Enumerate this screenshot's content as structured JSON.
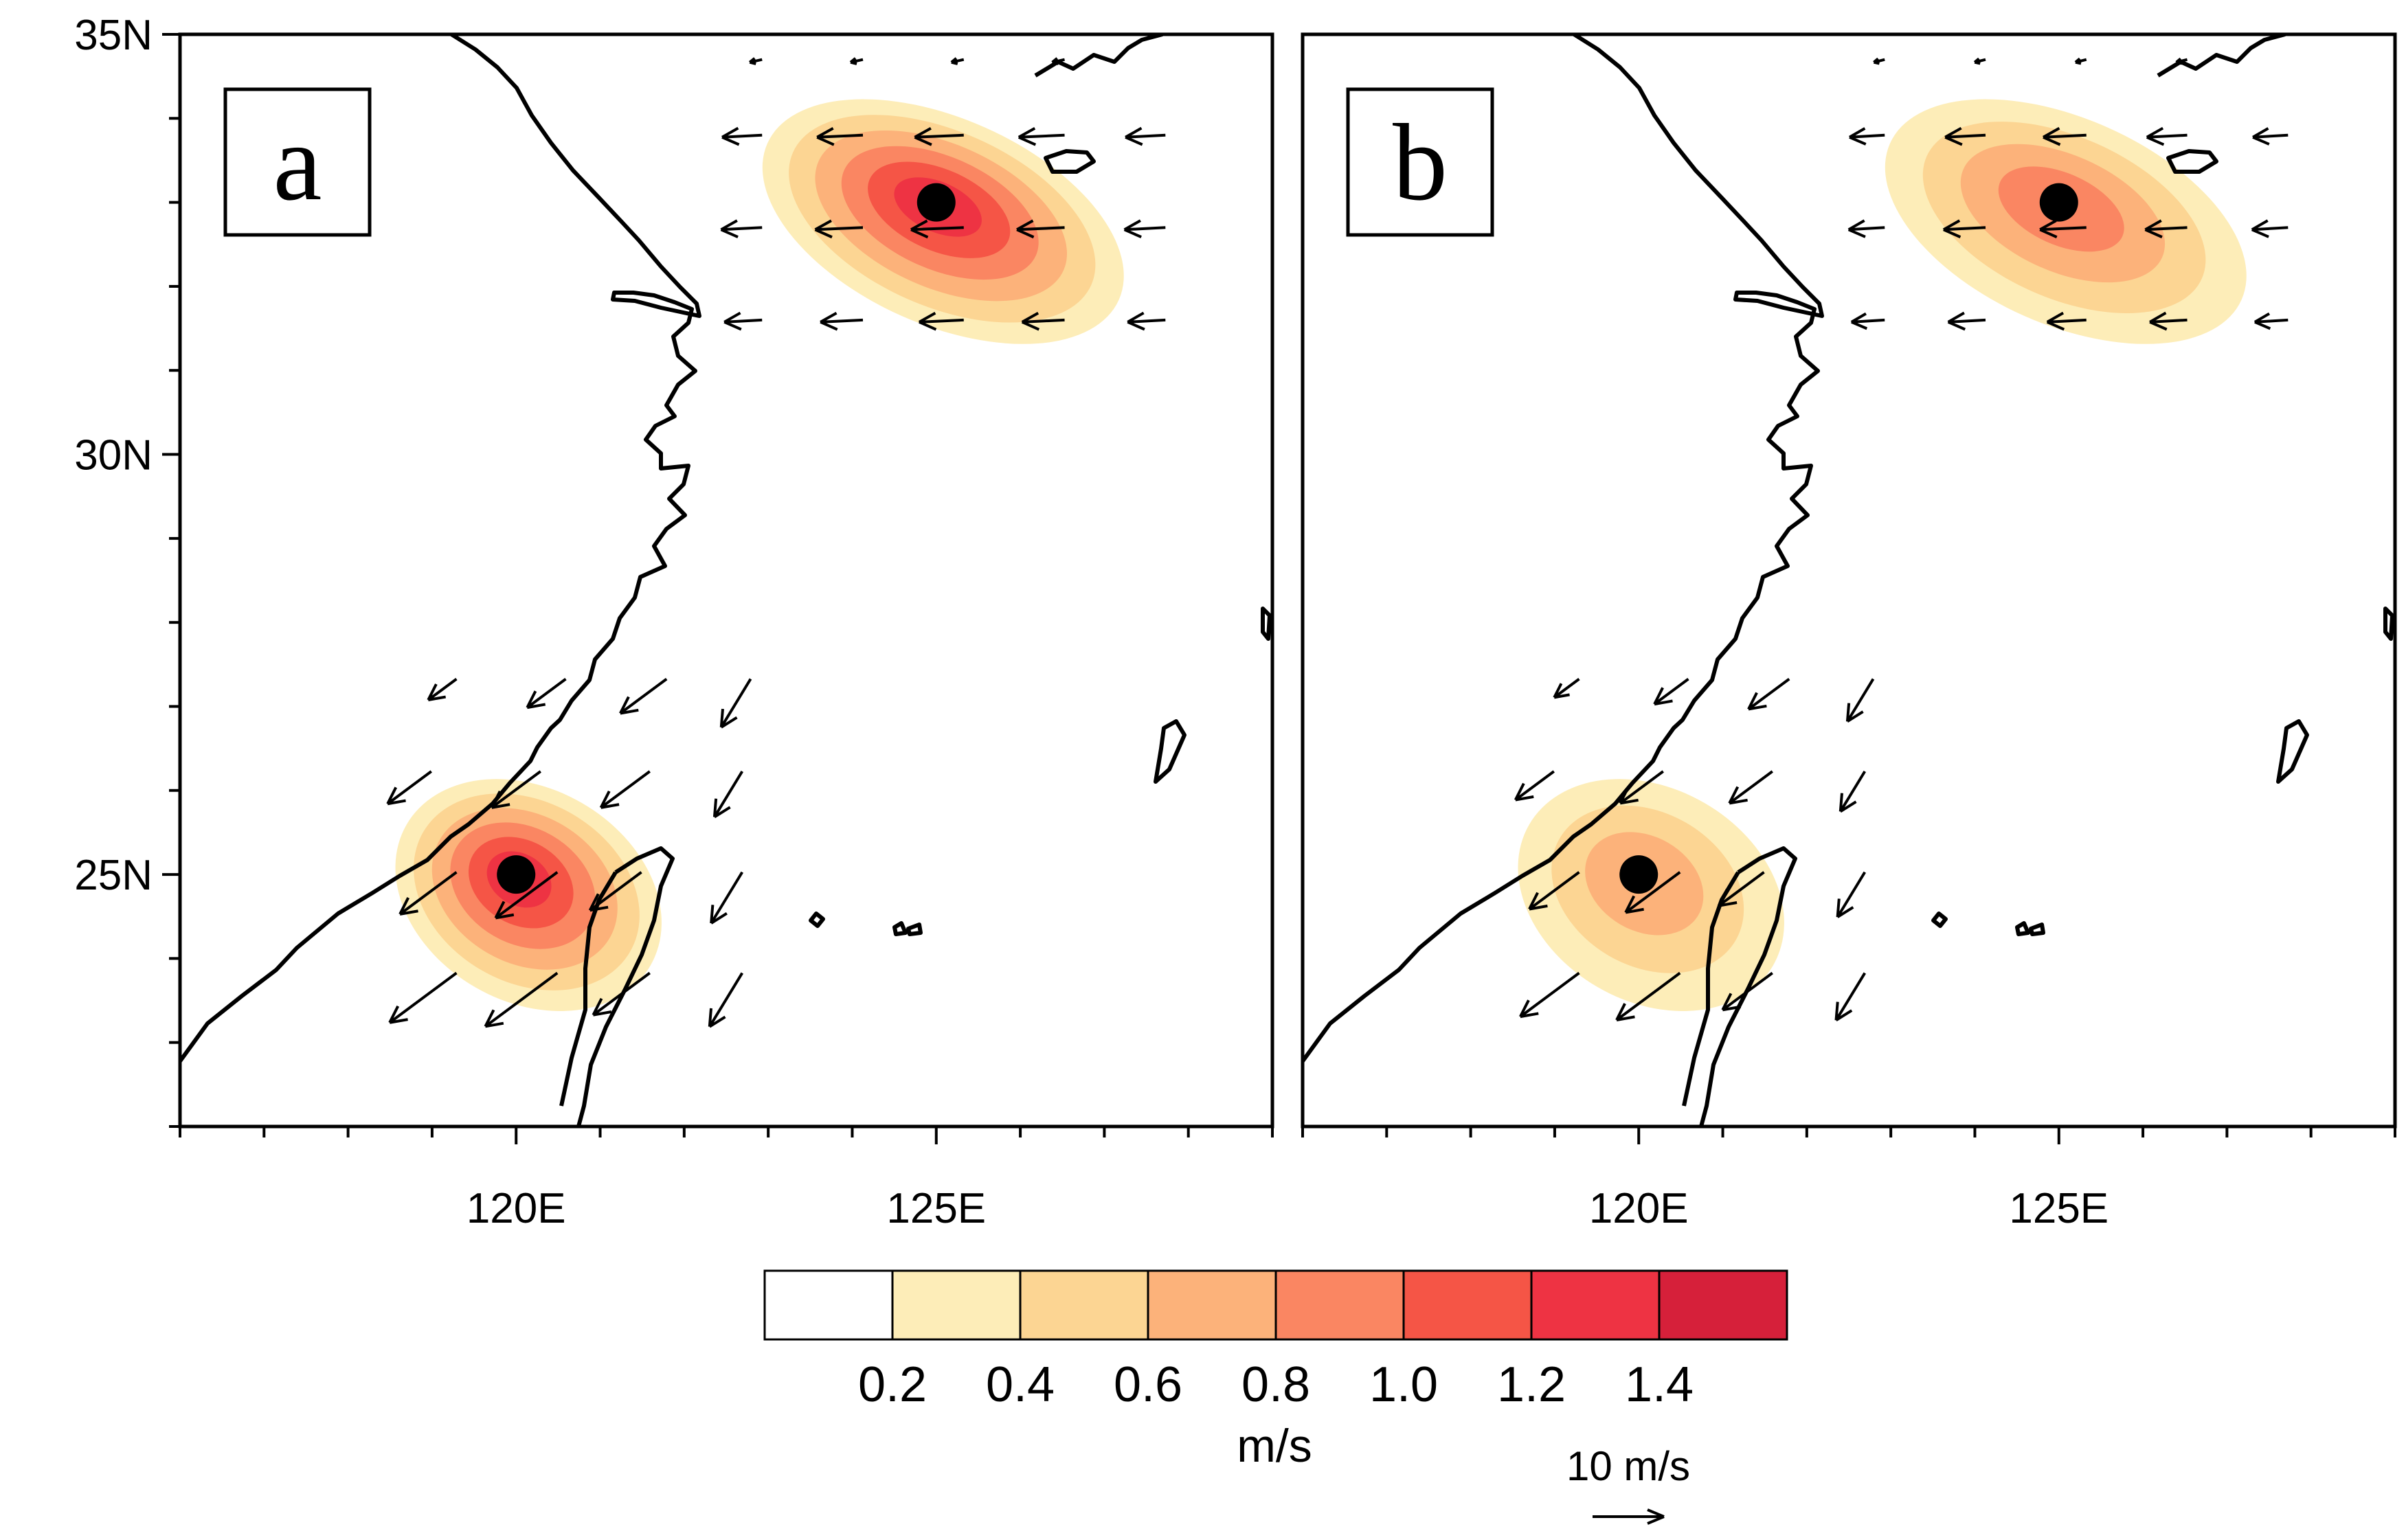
{
  "panels": [
    {
      "id": "a",
      "label": "a",
      "centers": [
        {
          "lon": 125.0,
          "lat": 33.0,
          "peak_speed": 1.3,
          "wind_direction": "westward"
        },
        {
          "lon": 120.0,
          "lat": 25.0,
          "peak_speed": 1.3,
          "wind_direction": "southwestward"
        }
      ]
    },
    {
      "id": "b",
      "label": "b",
      "centers": [
        {
          "lon": 125.0,
          "lat": 33.0,
          "peak_speed": 0.9,
          "wind_direction": "westward"
        },
        {
          "lon": 120.0,
          "lat": 25.0,
          "peak_speed": 0.7,
          "wind_direction": "southwestward"
        }
      ]
    }
  ],
  "axes": {
    "lon_range": [
      116,
      129
    ],
    "lat_range": [
      22,
      35
    ],
    "x_ticks": [
      {
        "value": 120,
        "label": "120E"
      },
      {
        "value": 125,
        "label": "125E"
      }
    ],
    "y_ticks": [
      {
        "value": 35,
        "label": "35N"
      },
      {
        "value": 30,
        "label": "30N"
      },
      {
        "value": 25,
        "label": "25N"
      }
    ]
  },
  "colorbar": {
    "levels": [
      "0.2",
      "0.4",
      "0.6",
      "0.8",
      "1.0",
      "1.2",
      "1.4"
    ],
    "colors": [
      "#ffffff",
      "#fdedb8",
      "#fcd593",
      "#fcb27a",
      "#fa8662",
      "#f55546",
      "#ee3343",
      "#d6203a"
    ],
    "units": "m/s"
  },
  "reference_vector": {
    "label": "10 m/s",
    "magnitude": 10
  },
  "colors": {
    "coastline": "#000000",
    "center_marker": "#000000"
  }
}
